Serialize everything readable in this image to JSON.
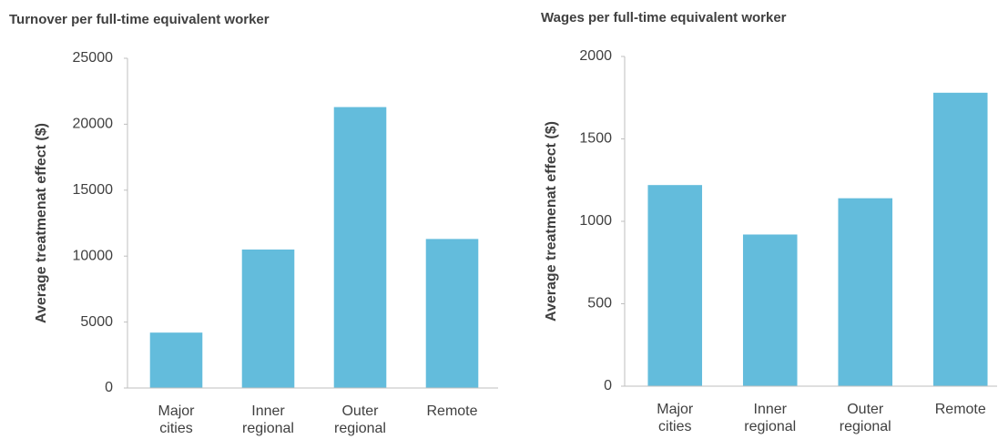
{
  "chart_data": [
    {
      "type": "bar",
      "title": "Turnover per full-time equivalent worker",
      "y_label": "Average treatmenat effect ($)",
      "categories": [
        "Major cities",
        "Inner regional",
        "Outer regional",
        "Remote"
      ],
      "values": [
        4200,
        10500,
        21300,
        11300
      ],
      "color": "#63bcdc",
      "ylim": [
        0,
        25000
      ],
      "yticks": [
        0,
        5000,
        10000,
        15000,
        20000,
        25000
      ]
    },
    {
      "type": "bar",
      "title": "Wages per full-time equivalent worker",
      "y_label": "Average treatmenat effect ($)",
      "categories": [
        "Major cities",
        "Inner regional",
        "Outer regional",
        "Remote"
      ],
      "values": [
        1220,
        920,
        1140,
        1780
      ],
      "color": "#63bcdc",
      "ylim": [
        0,
        2000
      ],
      "yticks": [
        0,
        500,
        1000,
        1500,
        2000
      ]
    }
  ]
}
